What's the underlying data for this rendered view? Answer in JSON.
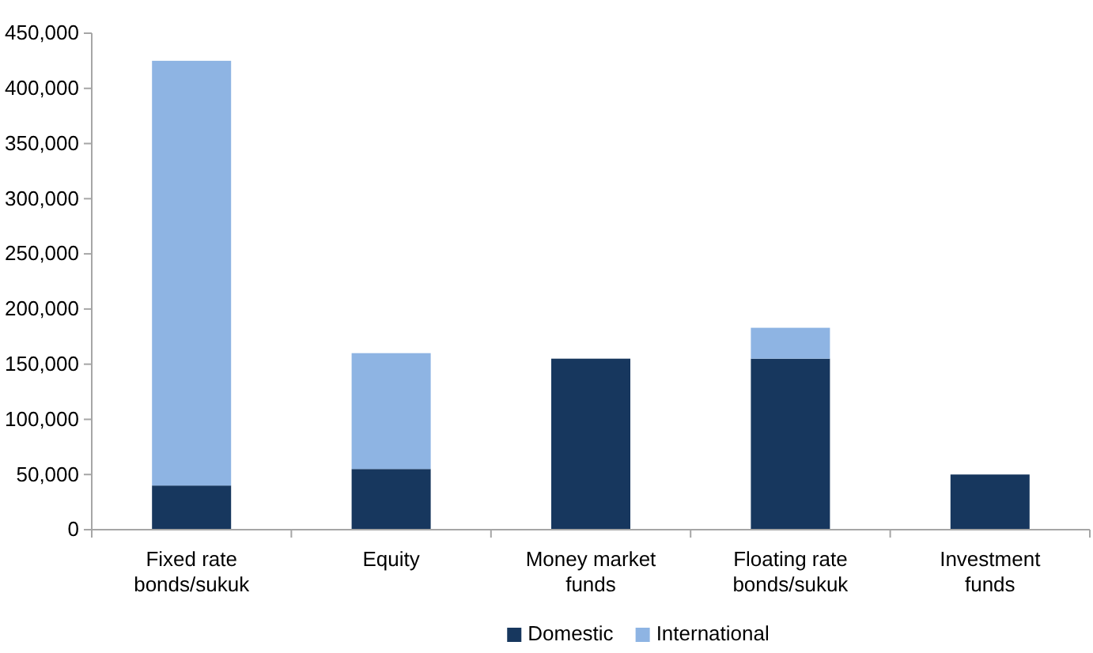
{
  "chart_data": {
    "type": "bar",
    "stacked": true,
    "categories": [
      "Fixed rate bonds/sukuk",
      "Equity",
      "Money market funds",
      "Floating rate bonds/sukuk",
      "Investment funds"
    ],
    "series": [
      {
        "name": "Domestic",
        "color": "#17375e",
        "values": [
          40000,
          55000,
          155000,
          155000,
          50000
        ]
      },
      {
        "name": "International",
        "color": "#8eb4e3",
        "values": [
          385000,
          105000,
          null,
          28000,
          null
        ]
      }
    ],
    "ylim": [
      0,
      450000
    ],
    "yticks": [
      {
        "value": 0,
        "label": "0"
      },
      {
        "value": 50000,
        "label": "50,000"
      },
      {
        "value": 100000,
        "label": "100,000"
      },
      {
        "value": 150000,
        "label": "150,000"
      },
      {
        "value": 200000,
        "label": "200,000"
      },
      {
        "value": 250000,
        "label": "250,000"
      },
      {
        "value": 300000,
        "label": "300,000"
      },
      {
        "value": 350000,
        "label": "350,000"
      },
      {
        "value": 400000,
        "label": "400,000"
      },
      {
        "value": 450000,
        "label": "450,000"
      }
    ],
    "grid": false,
    "legend": "bottom"
  }
}
